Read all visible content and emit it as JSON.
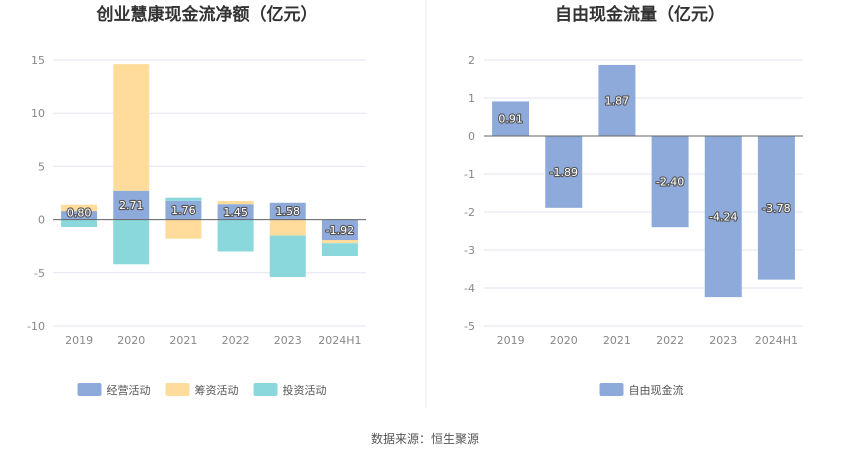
{
  "chart_data": [
    {
      "type": "bar",
      "stacked": true,
      "title": "创业慧康现金流净额（亿元）",
      "categories": [
        "2019",
        "2020",
        "2021",
        "2022",
        "2023",
        "2024H1"
      ],
      "ylim": [
        -10,
        15
      ],
      "yticks": [
        15,
        10,
        5,
        0,
        -5,
        -10
      ],
      "grid": true,
      "legend_position": "bottom",
      "series": [
        {
          "name": "经营活动",
          "color": "#8eaadb",
          "values": [
            0.8,
            2.71,
            1.76,
            1.45,
            1.58,
            -1.92
          ],
          "labels": [
            "0.80",
            "2.71",
            "1.76",
            "1.45",
            "1.58",
            "-1.92"
          ]
        },
        {
          "name": "筹资活动",
          "color": "#ffdb9c",
          "values": [
            0.6,
            11.9,
            -1.8,
            0.3,
            -1.5,
            -0.3
          ]
        },
        {
          "name": "投资活动",
          "color": "#8ad8dc",
          "values": [
            -0.7,
            -4.2,
            0.3,
            -3.0,
            -3.9,
            -1.2
          ]
        }
      ]
    },
    {
      "type": "bar",
      "title": "自由现金流量（亿元）",
      "categories": [
        "2019",
        "2020",
        "2021",
        "2022",
        "2023",
        "2024H1"
      ],
      "ylim": [
        -5,
        2
      ],
      "yticks": [
        2,
        1,
        0,
        -1,
        -2,
        -3,
        -4,
        -5
      ],
      "grid": true,
      "legend_position": "bottom",
      "series": [
        {
          "name": "自由现金流",
          "color": "#8eaadb",
          "values": [
            0.91,
            -1.89,
            1.87,
            -2.4,
            -4.24,
            -3.78
          ],
          "labels": [
            "0.91",
            "-1.89",
            "1.87",
            "-2.40",
            "-4.24",
            "-3.78"
          ]
        }
      ]
    }
  ],
  "source": "数据来源：恒生聚源",
  "colors": {
    "grid": "#e3e6ef",
    "axis": "#666666",
    "divider": "#eeeeee"
  }
}
